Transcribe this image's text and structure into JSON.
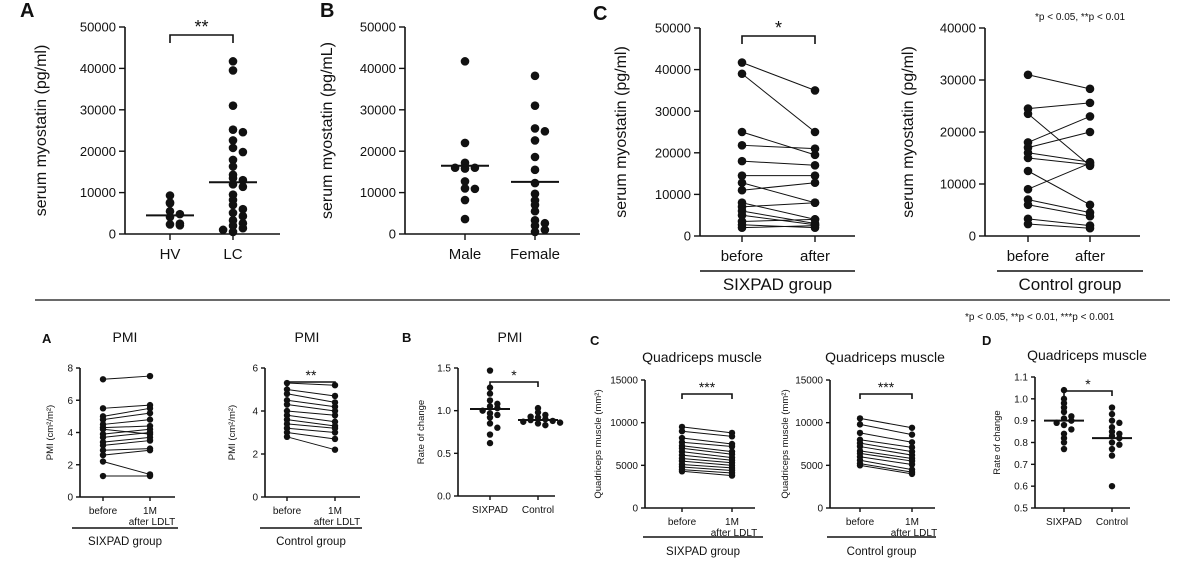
{
  "figure": {
    "top_note": "*p < 0.05, **p < 0.01",
    "bottom_note": "*p < 0.05, **p < 0.01, ***p < 0.001"
  },
  "chart_data": [
    {
      "id": "top-a",
      "panel_label": "A",
      "type": "scatter",
      "title": "",
      "ylabel": "serum myostatin (pg/ml)",
      "ylim": [
        0,
        50000
      ],
      "yticks": [
        "0",
        "10000",
        "20000",
        "30000",
        "40000",
        "50000"
      ],
      "categories": [
        "HV",
        "LC"
      ],
      "series": [
        {
          "values": [
            9300,
            7600,
            7400,
            5500,
            4800,
            4100,
            2500,
            2300,
            2100
          ]
        },
        {
          "values": [
            41700,
            39500,
            31000,
            25200,
            24600,
            22600,
            20800,
            19800,
            17900,
            16300,
            14300,
            13500,
            13000,
            12000,
            11400,
            9500,
            8200,
            7000,
            6000,
            5100,
            4300,
            3300,
            2600,
            2000,
            1400,
            1000,
            500
          ]
        }
      ],
      "means": [
        4500,
        12500
      ],
      "significance": [
        {
          "label": "**",
          "from": 0,
          "to": 1
        }
      ]
    },
    {
      "id": "top-b",
      "panel_label": "B",
      "type": "scatter",
      "title": "",
      "ylabel": "serum myostatin (pg/mL)",
      "ylim": [
        0,
        50000
      ],
      "yticks": [
        "0",
        "10000",
        "20000",
        "30000",
        "40000",
        "50000"
      ],
      "categories": [
        "Male",
        "Female"
      ],
      "series": [
        {
          "values": [
            41700,
            22000,
            17200,
            16000,
            16000,
            15800,
            12700,
            11000,
            10900,
            8200,
            3600
          ]
        },
        {
          "values": [
            38200,
            31000,
            25500,
            24800,
            22600,
            18600,
            15500,
            12300,
            9700,
            8100,
            7000,
            5500,
            3300,
            2600,
            2000,
            1000,
            500
          ]
        }
      ],
      "means": [
        16500,
        12600
      ],
      "significance": []
    },
    {
      "id": "top-c1",
      "panel_label": "C",
      "type": "line",
      "title": "",
      "ylabel": "serum myostatin (pg/ml)",
      "ylim": [
        0,
        50000
      ],
      "yticks": [
        "0",
        "10000",
        "20000",
        "30000",
        "40000",
        "50000"
      ],
      "categories": [
        "before",
        "after"
      ],
      "group_label": "SIXPAD group",
      "pairs": [
        [
          41700,
          35000
        ],
        [
          39000,
          25000
        ],
        [
          25000,
          19500
        ],
        [
          21800,
          21000
        ],
        [
          18000,
          17000
        ],
        [
          14500,
          14500
        ],
        [
          12800,
          8000
        ],
        [
          11000,
          12800
        ],
        [
          8000,
          4000
        ],
        [
          7000,
          8000
        ],
        [
          6000,
          3000
        ],
        [
          5000,
          2700
        ],
        [
          3500,
          4000
        ],
        [
          2700,
          2000
        ],
        [
          2000,
          2500
        ]
      ],
      "significance": [
        {
          "label": "*",
          "from": 0,
          "to": 1
        }
      ]
    },
    {
      "id": "top-c2",
      "panel_label": "",
      "type": "line",
      "title": "",
      "ylabel": "serum myostatin (pg/ml)",
      "ylim": [
        0,
        40000
      ],
      "yticks": [
        "0",
        "10000",
        "20000",
        "30000",
        "40000"
      ],
      "categories": [
        "before",
        "after"
      ],
      "group_label": "Control group",
      "pairs": [
        [
          31000,
          28300
        ],
        [
          24500,
          25600
        ],
        [
          23500,
          13500
        ],
        [
          18000,
          23000
        ],
        [
          17000,
          20000
        ],
        [
          16000,
          14200
        ],
        [
          15000,
          13700
        ],
        [
          12500,
          6000
        ],
        [
          9000,
          14000
        ],
        [
          7000,
          4500
        ],
        [
          6000,
          3800
        ],
        [
          3300,
          2000
        ],
        [
          2300,
          1500
        ]
      ],
      "significance": []
    },
    {
      "id": "bot-a1",
      "panel_label": "A",
      "type": "line",
      "title": "PMI",
      "ylabel": "PMI (cm²/m²)",
      "ylim": [
        0,
        8
      ],
      "yticks": [
        "0",
        "2",
        "4",
        "6",
        "8"
      ],
      "categories": [
        "before",
        "1M after LDLT"
      ],
      "group_label": "SIXPAD group",
      "pairs": [
        [
          7.3,
          7.5
        ],
        [
          5.5,
          5.7
        ],
        [
          5.0,
          5.5
        ],
        [
          4.8,
          5.2
        ],
        [
          4.5,
          4.8
        ],
        [
          4.3,
          4.4
        ],
        [
          4.2,
          3.9
        ],
        [
          3.9,
          4.2
        ],
        [
          3.7,
          4.0
        ],
        [
          3.4,
          3.7
        ],
        [
          3.2,
          3.5
        ],
        [
          2.9,
          3.0
        ],
        [
          2.6,
          2.9
        ],
        [
          2.2,
          1.4
        ],
        [
          1.3,
          1.3
        ]
      ],
      "significance": []
    },
    {
      "id": "bot-a2",
      "panel_label": "",
      "type": "line",
      "title": "PMI",
      "ylabel": "PMI (cm²/m²)",
      "ylim": [
        0,
        6
      ],
      "yticks": [
        "0",
        "2",
        "4",
        "6"
      ],
      "categories": [
        "before",
        "1M after LDLT"
      ],
      "group_label": "Control group",
      "pairs": [
        [
          5.3,
          5.2
        ],
        [
          5.0,
          4.7
        ],
        [
          4.8,
          4.4
        ],
        [
          4.5,
          4.2
        ],
        [
          4.3,
          4.0
        ],
        [
          4.0,
          3.8
        ],
        [
          3.8,
          3.5
        ],
        [
          3.6,
          3.3
        ],
        [
          3.4,
          3.2
        ],
        [
          3.2,
          3.0
        ],
        [
          3.0,
          2.7
        ],
        [
          2.8,
          2.2
        ]
      ],
      "significance": [
        {
          "label": "**",
          "from": 0,
          "to": 1
        }
      ]
    },
    {
      "id": "bot-b",
      "panel_label": "B",
      "type": "scatter",
      "title": "PMI",
      "ylabel": "Rate of change",
      "ylim": [
        0,
        1.5
      ],
      "yticks": [
        "0.0",
        "0.5",
        "1.0",
        "1.5"
      ],
      "categories": [
        "SIXPAD",
        "Control"
      ],
      "series": [
        {
          "values": [
            1.47,
            1.27,
            1.2,
            1.12,
            1.08,
            1.05,
            1.03,
            1.0,
            0.97,
            0.95,
            0.92,
            0.85,
            0.8,
            0.72,
            0.62
          ]
        },
        {
          "values": [
            1.03,
            0.98,
            0.95,
            0.93,
            0.92,
            0.9,
            0.89,
            0.88,
            0.87,
            0.86,
            0.85,
            0.83
          ]
        }
      ],
      "means": [
        1.02,
        0.89
      ],
      "significance": [
        {
          "label": "*",
          "from": 0,
          "to": 1
        }
      ]
    },
    {
      "id": "bot-c1",
      "panel_label": "C",
      "type": "line",
      "title": "Quadriceps muscle",
      "ylabel": "Quadriceps muscle (mm²)",
      "ylim": [
        0,
        15000
      ],
      "yticks": [
        "0",
        "5000",
        "10000",
        "15000"
      ],
      "categories": [
        "before",
        "1M after LDLT"
      ],
      "group_label": "SIXPAD group",
      "pairs": [
        [
          9500,
          8800
        ],
        [
          9000,
          8400
        ],
        [
          8200,
          7500
        ],
        [
          7700,
          7200
        ],
        [
          7300,
          6600
        ],
        [
          7000,
          6300
        ],
        [
          6600,
          5900
        ],
        [
          6200,
          5600
        ],
        [
          5800,
          5300
        ],
        [
          5500,
          5000
        ],
        [
          5100,
          4700
        ],
        [
          4800,
          4400
        ],
        [
          4500,
          4100
        ],
        [
          4300,
          3800
        ]
      ],
      "significance": [
        {
          "label": "***",
          "from": 0,
          "to": 1
        }
      ]
    },
    {
      "id": "bot-c2",
      "panel_label": "",
      "type": "line",
      "title": "Quadriceps muscle",
      "ylabel": "Quadriceps muscle (mm²)",
      "ylim": [
        0,
        15000
      ],
      "yticks": [
        "0",
        "5000",
        "10000",
        "15000"
      ],
      "categories": [
        "before",
        "1M after LDLT"
      ],
      "group_label": "Control group",
      "pairs": [
        [
          10500,
          9400
        ],
        [
          9800,
          8600
        ],
        [
          8800,
          7700
        ],
        [
          8000,
          7100
        ],
        [
          7600,
          6600
        ],
        [
          7200,
          6200
        ],
        [
          6700,
          5800
        ],
        [
          6400,
          5500
        ],
        [
          6000,
          5100
        ],
        [
          5600,
          4500
        ],
        [
          5200,
          4200
        ],
        [
          5000,
          4000
        ]
      ],
      "significance": [
        {
          "label": "***",
          "from": 0,
          "to": 1
        }
      ]
    },
    {
      "id": "bot-d",
      "panel_label": "D",
      "type": "scatter",
      "title": "Quadriceps muscle",
      "ylabel": "Rate of change",
      "ylim": [
        0.5,
        1.1
      ],
      "yticks": [
        "0.5",
        "0.6",
        "0.7",
        "0.8",
        "0.9",
        "1.0",
        "1.1"
      ],
      "categories": [
        "SIXPAD",
        "Control"
      ],
      "series": [
        {
          "values": [
            1.04,
            1.0,
            0.98,
            0.96,
            0.94,
            0.92,
            0.91,
            0.9,
            0.89,
            0.88,
            0.86,
            0.84,
            0.82,
            0.8,
            0.77
          ]
        },
        {
          "values": [
            0.96,
            0.93,
            0.9,
            0.89,
            0.87,
            0.85,
            0.84,
            0.83,
            0.82,
            0.8,
            0.79,
            0.77,
            0.74,
            0.6
          ]
        }
      ],
      "means": [
        0.9,
        0.82
      ],
      "significance": [
        {
          "label": "*",
          "from": 0,
          "to": 1
        }
      ]
    }
  ]
}
